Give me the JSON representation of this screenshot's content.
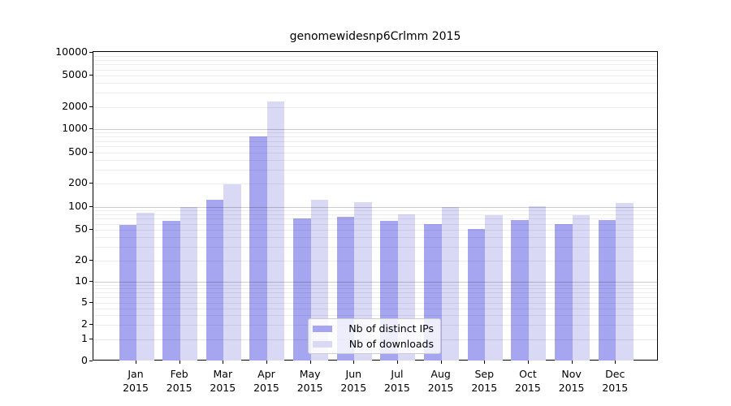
{
  "title": "genomewidesnp6Crlmm 2015",
  "year_label": "2015",
  "axes": {
    "y_tick_labels": [
      "0",
      "1",
      "2",
      "5",
      "10",
      "20",
      "50",
      "100",
      "200",
      "500",
      "1000",
      "2000",
      "5000",
      "10000"
    ],
    "y_tick_values": [
      0,
      1,
      2,
      5,
      10,
      20,
      50,
      100,
      200,
      500,
      1000,
      2000,
      5000,
      10000
    ]
  },
  "legend": {
    "items": [
      {
        "label": "Nb of distinct IPs",
        "color": "#a6a6f0"
      },
      {
        "label": "Nb of downloads",
        "color": "#d9d9f6"
      }
    ]
  },
  "chart_data": {
    "type": "bar",
    "title": "genomewidesnp6Crlmm 2015",
    "categories": [
      "Jan 2015",
      "Feb 2015",
      "Mar 2015",
      "Apr 2015",
      "May 2015",
      "Jun 2015",
      "Jul 2015",
      "Aug 2015",
      "Sep 2015",
      "Oct 2015",
      "Nov 2015",
      "Dec 2015"
    ],
    "months_short": [
      "Jan",
      "Feb",
      "Mar",
      "Apr",
      "May",
      "Jun",
      "Jul",
      "Aug",
      "Sep",
      "Oct",
      "Nov",
      "Dec"
    ],
    "series": [
      {
        "name": "Nb of distinct IPs",
        "color": "#a6a6f0",
        "values": [
          58,
          66,
          124,
          810,
          70,
          75,
          66,
          60,
          51,
          67,
          60,
          67
        ]
      },
      {
        "name": "Nb of downloads",
        "color": "#d9d9f6",
        "values": [
          84,
          100,
          195,
          2350,
          125,
          115,
          80,
          100,
          79,
          103,
          78,
          113
        ]
      }
    ],
    "xlabel": "",
    "ylabel": "",
    "yscale": "log-like (ticks 0,1,2,5,10,20,50,100,200,500,1000,2000,5000,10000)",
    "ylim": [
      0,
      10000
    ],
    "grid": true,
    "legend_position": "lower center inside plot"
  }
}
